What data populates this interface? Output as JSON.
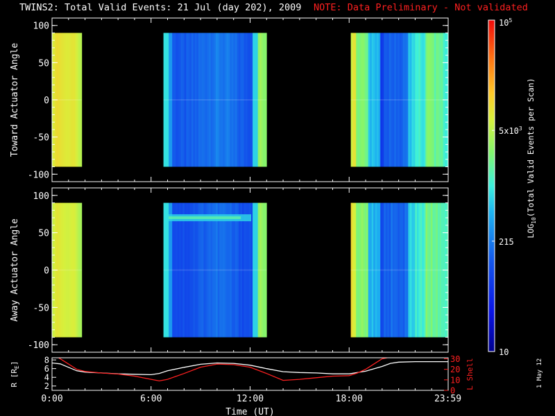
{
  "title": "TWINS2: Total Valid Events: 21 Jul (day 202), 2009",
  "note": "NOTE: Data Preliminary - Not validated",
  "date_stamp": "1 May 12",
  "colors": {
    "background": "#000000",
    "axis": "#ffffff",
    "note": "#ff2020",
    "r_line": "#ffffff",
    "lshell_line": "#ff2020"
  },
  "chart_data": [
    {
      "type": "heatmap",
      "panel": "top",
      "ylabel": "Toward Actuator Angle",
      "xlim": [
        0,
        24
      ],
      "ylim": [
        -110,
        110
      ],
      "yticks": [
        "100",
        "50",
        "0",
        "-50",
        "-100"
      ],
      "ytick_values": [
        100,
        50,
        0,
        -50,
        -100
      ],
      "data_ylim": [
        -90,
        90
      ],
      "segments": [
        {
          "start": 0.0,
          "end": 1.8,
          "level": 0.76,
          "variation": "edge-orange"
        },
        {
          "start": 6.75,
          "end": 13.0,
          "level": 0.3,
          "variation": "blue-with-cyan-edges"
        },
        {
          "start": 18.1,
          "end": 24.0,
          "level": 0.48,
          "variation": "mixed-blue-green"
        }
      ]
    },
    {
      "type": "heatmap",
      "panel": "middle",
      "ylabel": "Away Actuator Angle",
      "xlim": [
        0,
        24
      ],
      "ylim": [
        -110,
        110
      ],
      "yticks": [
        "100",
        "50",
        "0",
        "-50",
        "-100"
      ],
      "ytick_values": [
        100,
        50,
        0,
        -50,
        -100
      ],
      "data_ylim": [
        -90,
        90
      ],
      "segments": [
        {
          "start": 0.0,
          "end": 1.8,
          "level": 0.74,
          "variation": "edge-orange"
        },
        {
          "start": 6.75,
          "end": 13.0,
          "level": 0.28,
          "variation": "blue-with-cyan-band"
        },
        {
          "start": 18.1,
          "end": 24.0,
          "level": 0.46,
          "variation": "mixed-blue-green"
        }
      ]
    },
    {
      "type": "line",
      "panel": "bottom",
      "ylabel_left": "R [R",
      "ylabel_left_sub": "E",
      "ylabel_left_close": "]",
      "ylabel_right": "L Shell",
      "xlabel": "Time (UT)",
      "xlim": [
        0,
        24
      ],
      "xticks": [
        "0:00",
        "6:00",
        "12:00",
        "18:00",
        "23:59"
      ],
      "xtick_values": [
        0,
        6,
        12,
        18,
        23.98
      ],
      "ylim_left": [
        1,
        8.5
      ],
      "yticks_left": [
        "8",
        "6",
        "4",
        "2"
      ],
      "ytick_values_left": [
        8,
        6,
        4,
        2
      ],
      "ylim_right": [
        0,
        31
      ],
      "yticks_right": [
        "30",
        "20",
        "10",
        "0"
      ],
      "ytick_values_right": [
        30,
        20,
        10,
        0
      ],
      "series": [
        {
          "axis": "left",
          "color": "#ffffff",
          "x": [
            0,
            0.5,
            1.0,
            1.5,
            2.0,
            3.0,
            4.0,
            5.0,
            6.0,
            6.5,
            7.0,
            8.0,
            9.0,
            10.0,
            11.0,
            12.0,
            13.0,
            14.0,
            15.0,
            16.0,
            17.0,
            18.0,
            19.0,
            20.0,
            20.5,
            21.0,
            22.0,
            23.0,
            24.0
          ],
          "y": [
            7.3,
            7.1,
            6.3,
            5.5,
            5.2,
            5.0,
            4.8,
            4.7,
            4.6,
            4.9,
            5.5,
            6.3,
            7.0,
            7.3,
            7.2,
            6.8,
            6.0,
            5.3,
            5.1,
            5.0,
            4.8,
            4.8,
            5.4,
            6.5,
            7.2,
            7.5,
            7.6,
            7.6,
            7.6
          ]
        },
        {
          "axis": "right",
          "color": "#ff2020",
          "x": [
            0.4,
            1.0,
            1.5,
            2.0,
            3.0,
            4.0,
            5.0,
            6.0,
            6.5,
            7.0,
            8.0,
            9.0,
            10.0,
            11.0,
            12.0,
            13.0,
            14.0,
            15.0,
            16.0,
            17.0,
            18.0,
            18.5,
            19.0,
            19.5,
            20.0,
            20.3
          ],
          "y": [
            31,
            25,
            20,
            18,
            16.5,
            15.5,
            13.5,
            10.5,
            9,
            10.5,
            16,
            22,
            25,
            24.5,
            22,
            16,
            9.5,
            10.5,
            12,
            13.5,
            14,
            16.5,
            20,
            25,
            30,
            31
          ]
        }
      ]
    }
  ],
  "colorbar": {
    "label": "LOG",
    "label_sub": "10",
    "label_rest": "(Total Valid Events per Scan)",
    "ticks": [
      {
        "text": "10",
        "level": 0.0
      },
      {
        "text": "215",
        "level": 0.333
      },
      {
        "text": "5x10",
        "sup": "3",
        "level": 0.667
      },
      {
        "text": "10",
        "sup": "5",
        "level": 1.0
      }
    ]
  }
}
